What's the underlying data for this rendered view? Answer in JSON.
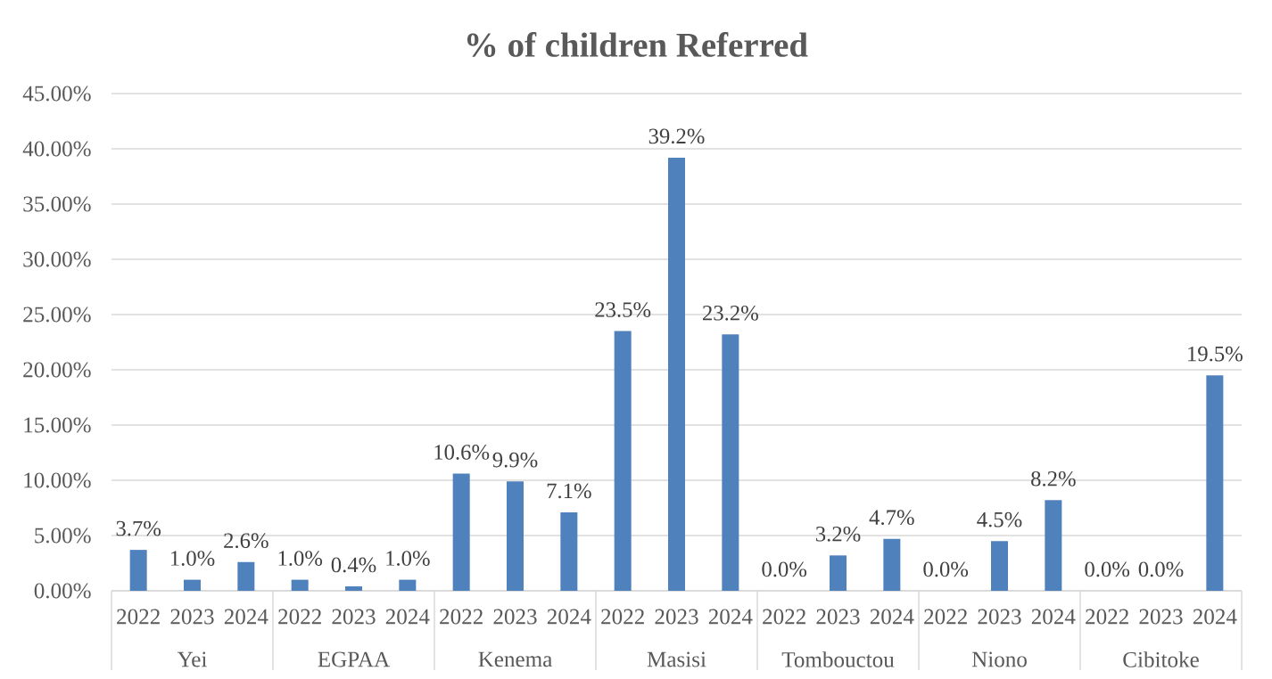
{
  "chart_data": {
    "type": "bar",
    "title": "% of children Referred",
    "categories": [
      "2022",
      "2023",
      "2024",
      "2022",
      "2023",
      "2024",
      "2022",
      "2023",
      "2024",
      "2022",
      "2023",
      "2024",
      "2022",
      "2023",
      "2024",
      "2022",
      "2023",
      "2024",
      "2022",
      "2023",
      "2024"
    ],
    "values": [
      3.7,
      1.0,
      2.6,
      1.0,
      0.4,
      1.0,
      10.6,
      9.9,
      7.1,
      23.5,
      39.2,
      23.2,
      0.0,
      3.2,
      4.7,
      0.0,
      4.5,
      8.2,
      0.0,
      0.0,
      19.5
    ],
    "value_labels": [
      "3.7%",
      "1.0%",
      "2.6%",
      "1.0%",
      "0.4%",
      "1.0%",
      "10.6%",
      "9.9%",
      "7.1%",
      "23.5%",
      "39.2%",
      "23.2%",
      "0.0%",
      "3.2%",
      "4.7%",
      "0.0%",
      "4.5%",
      "8.2%",
      "0.0%",
      "0.0%",
      "19.5%"
    ],
    "color": "#4f81bd",
    "ylim": [
      0,
      45
    ],
    "yticks": [
      {
        "value": 0,
        "label": "0.00%"
      },
      {
        "value": 5,
        "label": "5.00%"
      },
      {
        "value": 10,
        "label": "10.00%"
      },
      {
        "value": 15,
        "label": "15.00%"
      },
      {
        "value": 20,
        "label": "20.00%"
      },
      {
        "value": 25,
        "label": "25.00%"
      },
      {
        "value": 30,
        "label": "30.00%"
      },
      {
        "value": 35,
        "label": "35.00%"
      },
      {
        "value": 40,
        "label": "40.00%"
      },
      {
        "value": 45,
        "label": "45.00%"
      }
    ],
    "grid": "y",
    "annotations": [
      "Yei",
      "EGPAA",
      "Kenema",
      "Masisi",
      "Tombouctou",
      "Niono",
      "Cibitoke"
    ]
  }
}
